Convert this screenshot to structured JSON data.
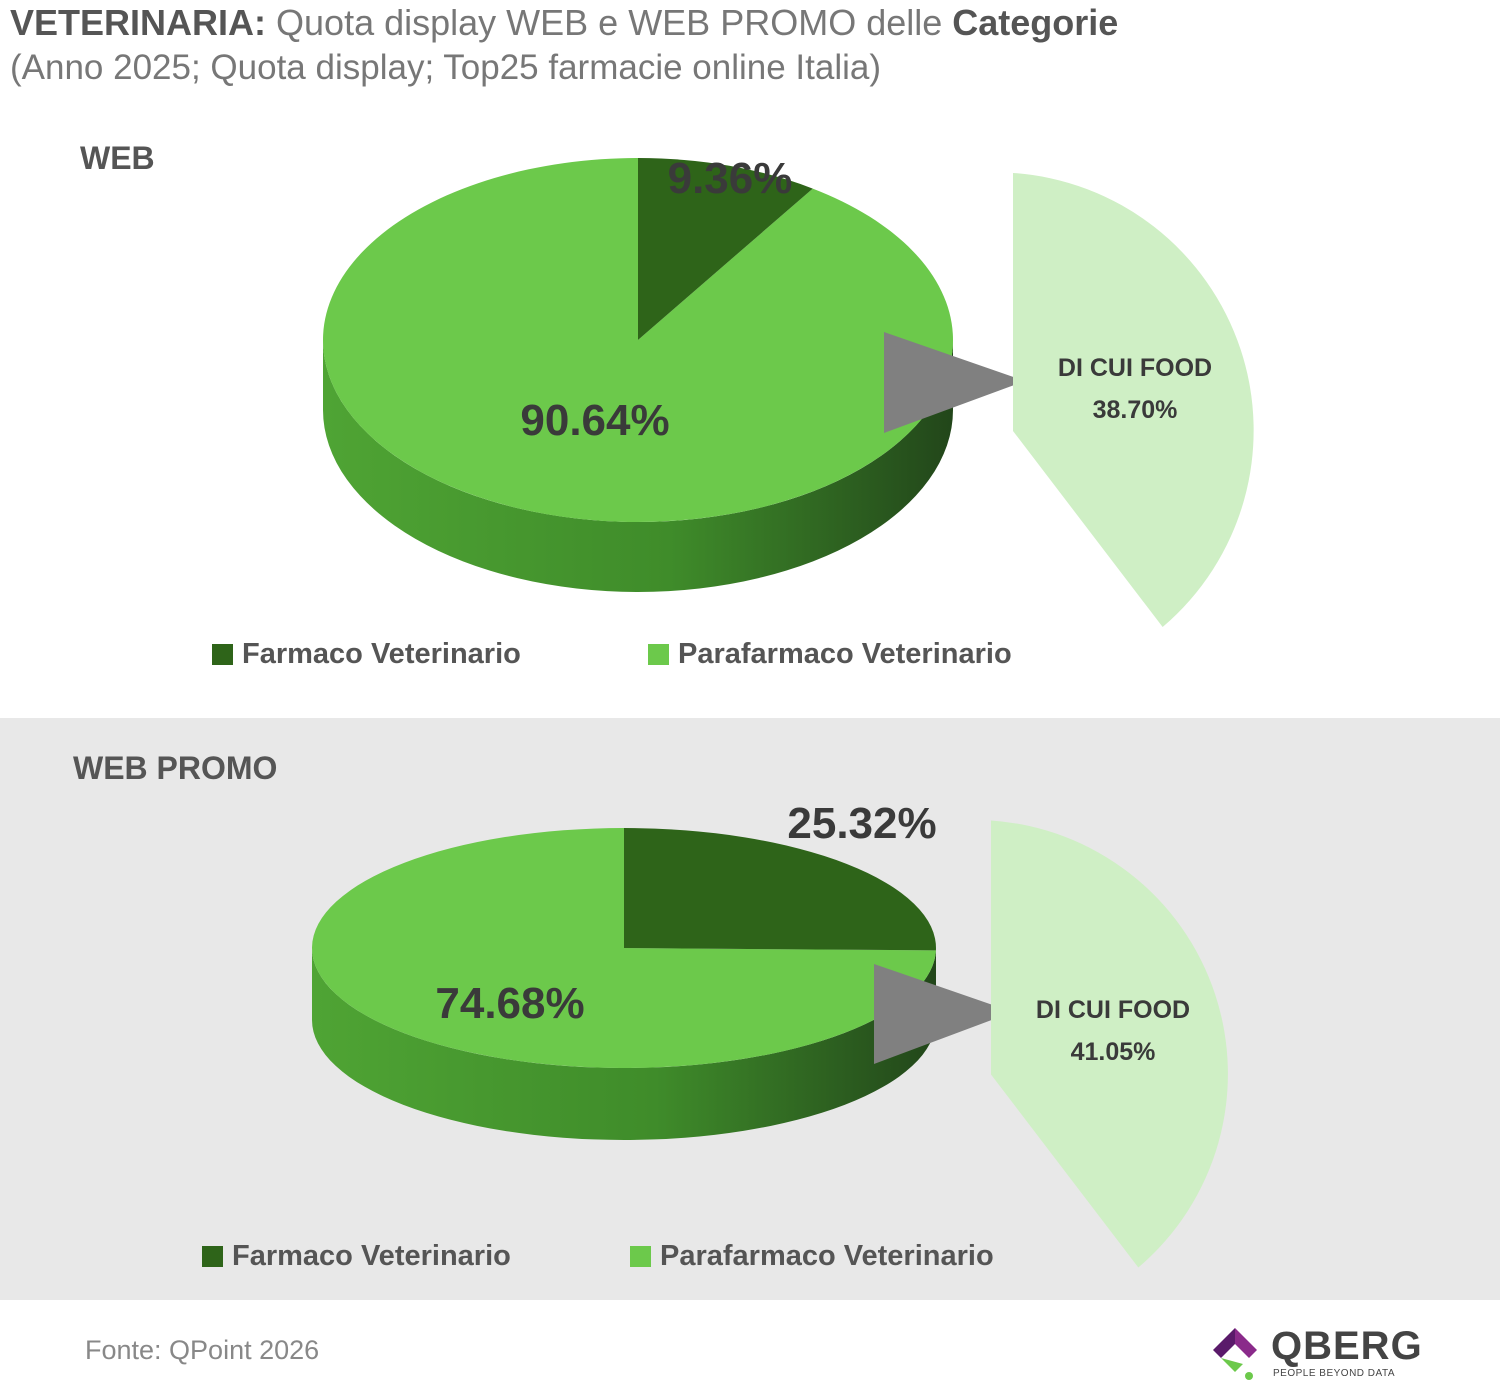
{
  "header": {
    "title_bold": "VETERINARIA:",
    "title_text": "Quota display WEB e WEB PROMO delle",
    "title_bold_end": "Categorie",
    "subtitle": "(Anno 2025; Quota display; Top25 farmacie online Italia)"
  },
  "colors": {
    "farmaco": "#2e6419",
    "parafarmaco": "#6cc94b",
    "food": "#cfefc5",
    "arrow": "#808080",
    "band": "#e8e8e8"
  },
  "chart_data": [
    {
      "type": "pie",
      "title": "WEB",
      "series": [
        {
          "name": "Farmaco Veterinario",
          "value": 9.36,
          "label": "9.36%"
        },
        {
          "name": "Parafarmaco Veterinario",
          "value": 90.64,
          "label": "90.64%"
        }
      ],
      "breakout": {
        "of": "Parafarmaco Veterinario",
        "label": "DI CUI FOOD",
        "value": 38.7,
        "value_label": "38.70%"
      },
      "legend": [
        "Farmaco Veterinario",
        "Parafarmaco Veterinario"
      ],
      "legend_position": "bottom"
    },
    {
      "type": "pie",
      "title": "WEB PROMO",
      "series": [
        {
          "name": "Farmaco Veterinario",
          "value": 25.32,
          "label": "25.32%"
        },
        {
          "name": "Parafarmaco Veterinario",
          "value": 74.68,
          "label": "74.68%"
        }
      ],
      "breakout": {
        "of": "Parafarmaco Veterinario",
        "label": "DI CUI FOOD",
        "value": 41.05,
        "value_label": "41.05%"
      },
      "legend": [
        "Farmaco Veterinario",
        "Parafarmaco Veterinario"
      ],
      "legend_position": "bottom"
    }
  ],
  "footer": {
    "source": "Fonte: QPoint 2026",
    "logo_name": "QBERG",
    "logo_tagline": "PEOPLE BEYOND DATA"
  }
}
